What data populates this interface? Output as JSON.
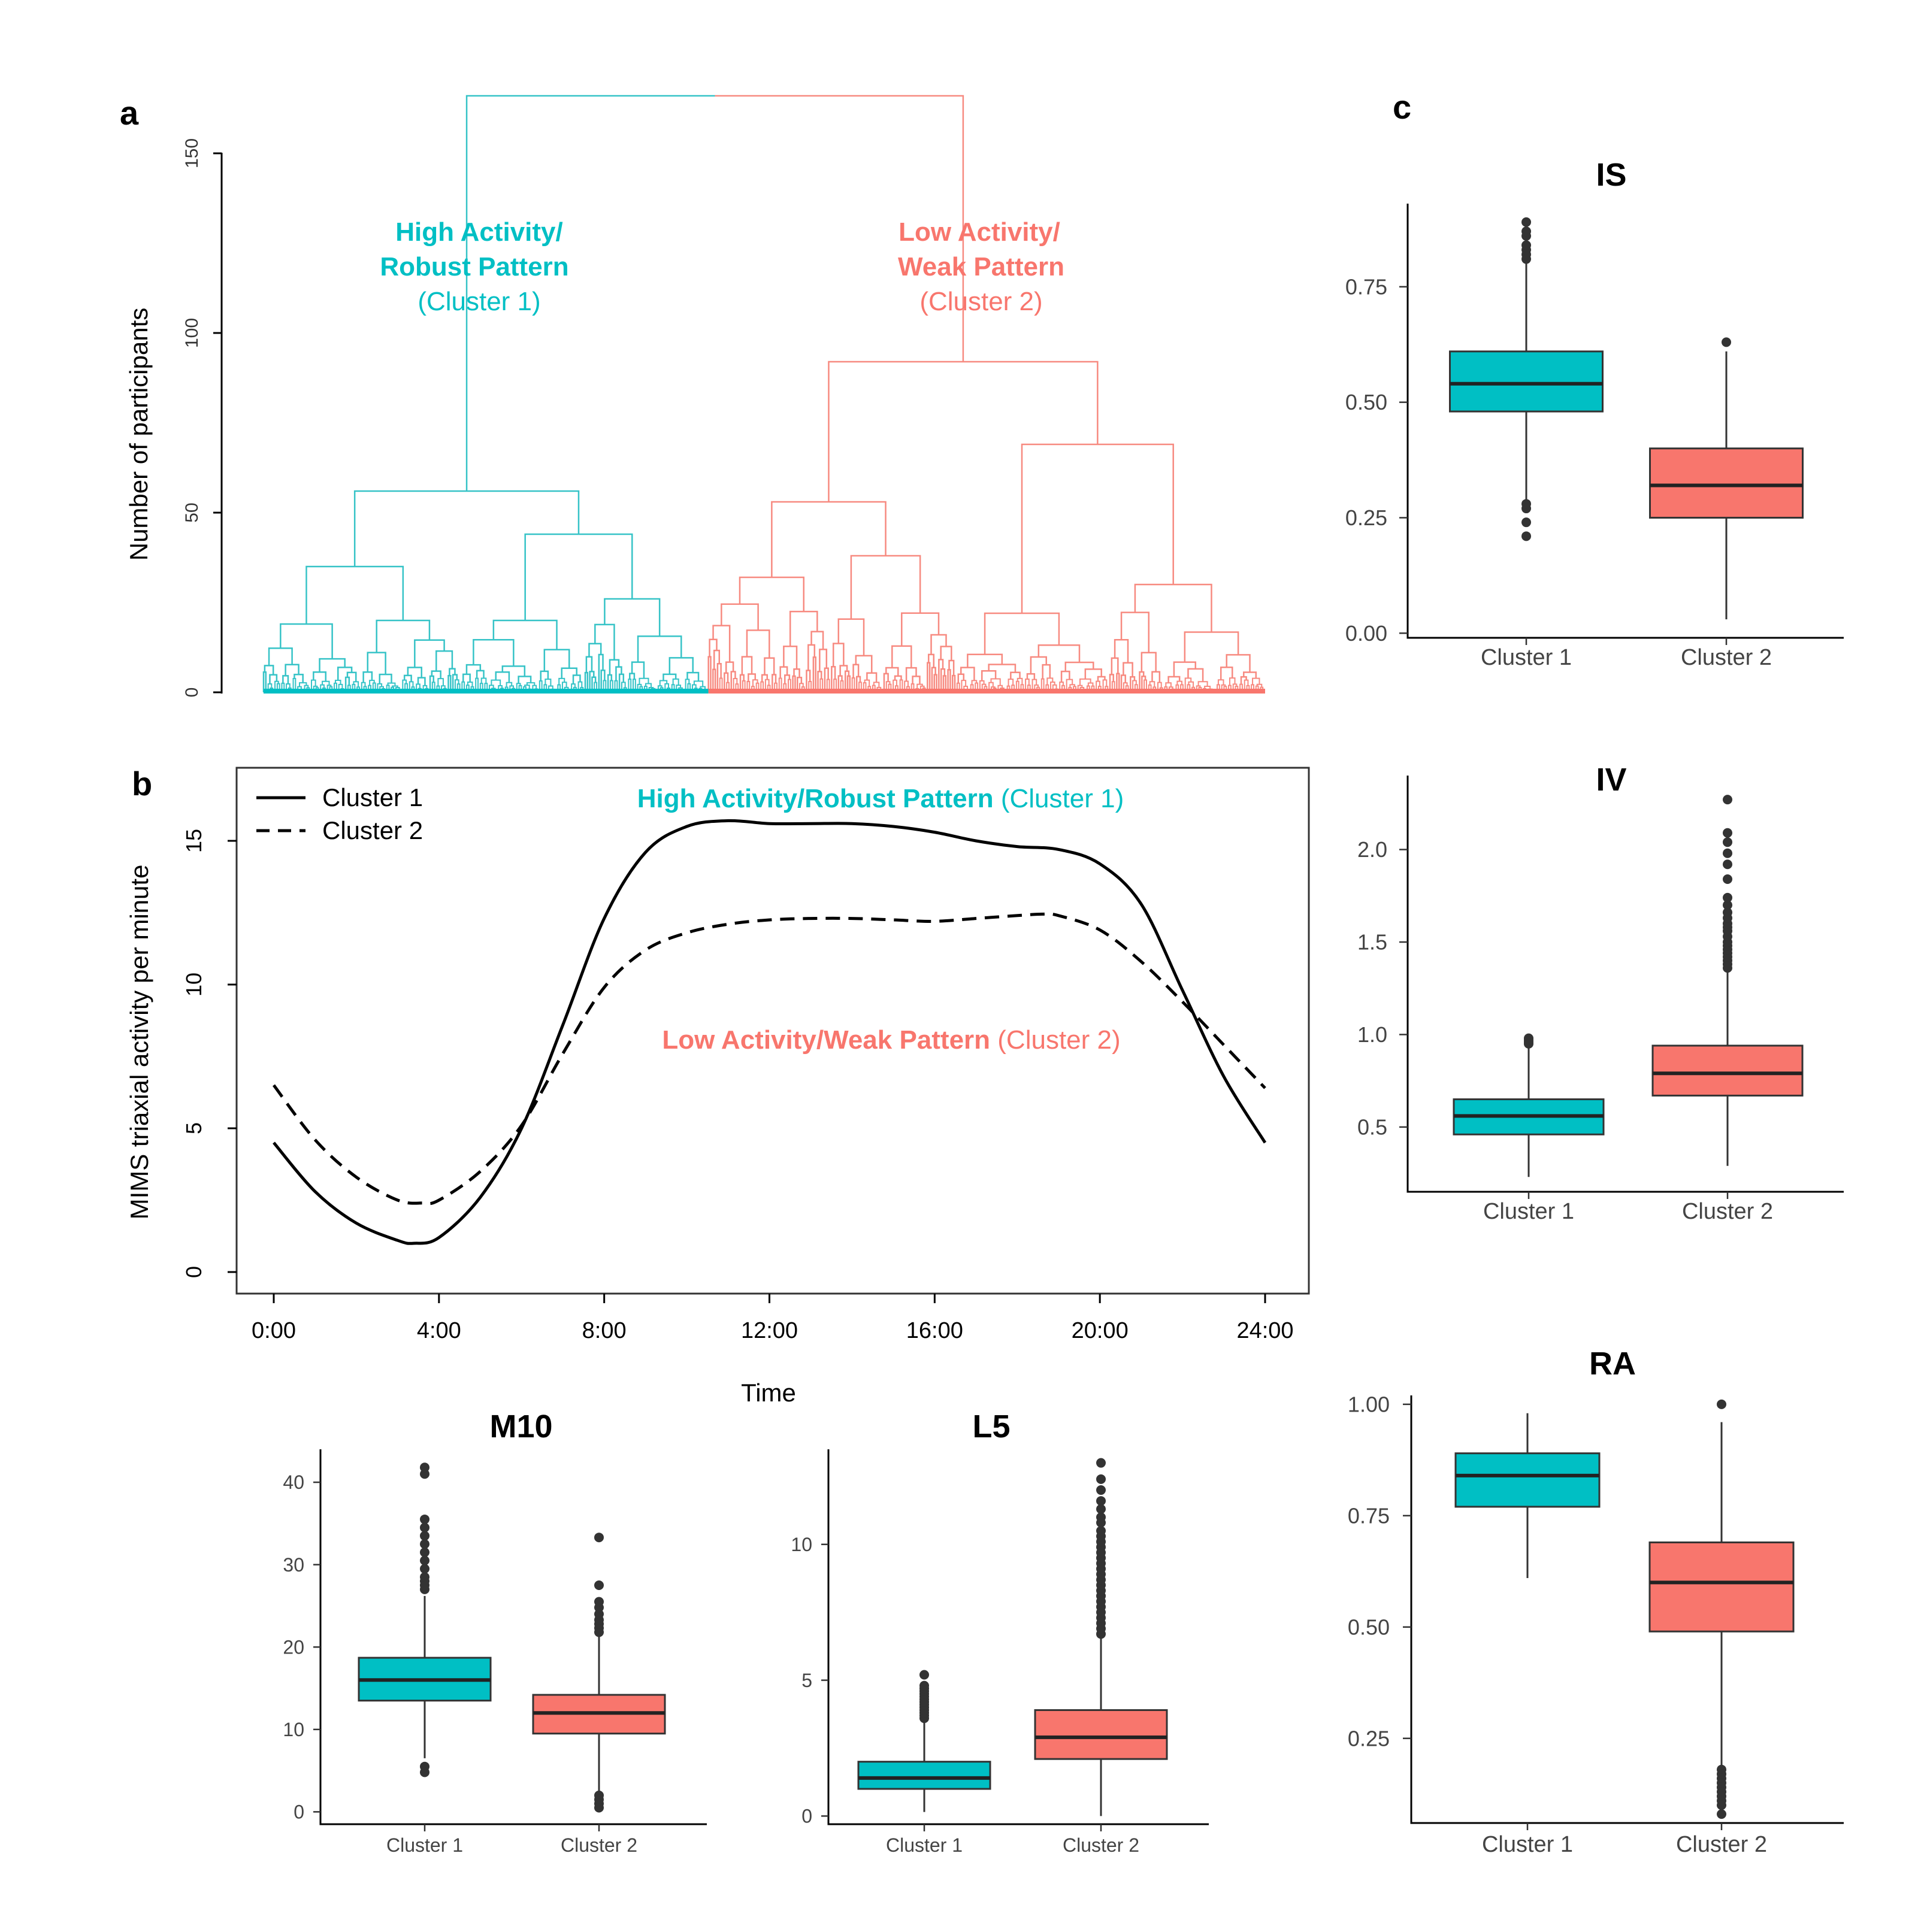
{
  "figure": {
    "panels": {
      "a": "a",
      "b": "b",
      "c": "c"
    }
  },
  "colors": {
    "cluster1": "#00BFC4",
    "cluster2": "#F8766D",
    "dendro1": "#36c3c7",
    "dendro2": "#f78a80",
    "outlier": "#333333"
  },
  "chart_data": [
    {
      "id": "dendrogram",
      "type": "dendrogram",
      "ylabel": "Number of participants",
      "yticks": [
        0,
        50,
        100,
        150
      ],
      "ylim": [
        0,
        150
      ],
      "root_height": 166,
      "clusters": [
        {
          "name_line1": "High Activity/",
          "name_line2": "Robust Pattern",
          "name_line3": "(Cluster 1)",
          "color_key": "cluster1",
          "merge_height": 56,
          "sub_merges": [
            35,
            44
          ],
          "lower_merges": [
            19,
            20,
            20,
            26,
            21
          ]
        },
        {
          "name_line1": "Low Activity/",
          "name_line2": "Weak Pattern",
          "name_line3": "(Cluster 2)",
          "color_key": "cluster2",
          "merge_height": 92,
          "sub_merges": [
            53,
            69
          ],
          "lower_merges": [
            32,
            38,
            22,
            30,
            25
          ]
        }
      ]
    },
    {
      "id": "activity-profile",
      "type": "line",
      "xlabel": "Time",
      "ylabel": "MIMS triaxial activity per minute",
      "xticks": [
        "0:00",
        "4:00",
        "8:00",
        "12:00",
        "16:00",
        "20:00",
        "24:00"
      ],
      "xlim_hours": [
        0,
        24
      ],
      "yticks": [
        0,
        5,
        10,
        15
      ],
      "ylim": [
        -0.6,
        17.5
      ],
      "legend": [
        "Cluster 1",
        "Cluster 2"
      ],
      "legend_position": "top-left",
      "annotations": [
        {
          "bold": "High Activity/Robust Pattern",
          "rest": " (Cluster 1)",
          "color_key": "cluster1"
        },
        {
          "bold": "Low Activity/Weak Pattern",
          "rest": " (Cluster 2)",
          "color_key": "cluster2"
        }
      ],
      "series": [
        {
          "name": "Cluster 1",
          "line_style": "solid",
          "x": [
            0,
            1,
            2,
            3,
            3.4,
            4,
            5,
            6,
            7,
            8,
            9,
            10,
            11,
            12,
            13,
            14,
            15,
            16,
            17,
            18,
            19,
            20,
            21,
            22,
            23,
            24
          ],
          "y": [
            4.5,
            2.8,
            1.7,
            1.1,
            1.0,
            1.2,
            2.6,
            5.0,
            8.6,
            12.3,
            14.6,
            15.5,
            15.7,
            15.6,
            15.6,
            15.6,
            15.5,
            15.3,
            15.0,
            14.8,
            14.7,
            14.2,
            12.8,
            9.8,
            6.8,
            4.5
          ]
        },
        {
          "name": "Cluster 2",
          "line_style": "dashed",
          "x": [
            0,
            1,
            2,
            3,
            3.6,
            4,
            5,
            6,
            7,
            8,
            9,
            10,
            11,
            12,
            13,
            14,
            15,
            16,
            17,
            18,
            18.6,
            19,
            20,
            21,
            22,
            23,
            24
          ],
          "y": [
            6.5,
            4.6,
            3.3,
            2.5,
            2.4,
            2.5,
            3.5,
            5.1,
            7.6,
            9.9,
            11.2,
            11.8,
            12.1,
            12.25,
            12.3,
            12.3,
            12.25,
            12.2,
            12.3,
            12.4,
            12.45,
            12.4,
            11.9,
            10.8,
            9.4,
            7.9,
            6.4
          ]
        }
      ]
    },
    {
      "id": "box-IS",
      "type": "box",
      "title": "IS",
      "categories": [
        "Cluster 1",
        "Cluster 2"
      ],
      "yticks": [
        0.0,
        0.25,
        0.5,
        0.75
      ],
      "ytick_labels": [
        "0.00",
        "0.25",
        "0.50",
        "0.75"
      ],
      "ylim": [
        -0.01,
        0.93
      ],
      "boxes": [
        {
          "category": "Cluster 1",
          "color_key": "cluster1",
          "whisker_low": 0.29,
          "q1": 0.48,
          "median": 0.54,
          "q3": 0.61,
          "whisker_high": 0.8,
          "outliers": [
            0.81,
            0.82,
            0.83,
            0.84,
            0.86,
            0.87,
            0.89,
            0.27,
            0.28,
            0.24,
            0.21
          ]
        },
        {
          "category": "Cluster 2",
          "color_key": "cluster2",
          "whisker_low": 0.03,
          "q1": 0.25,
          "median": 0.32,
          "q3": 0.4,
          "whisker_high": 0.61,
          "outliers": [
            0.63
          ]
        }
      ]
    },
    {
      "id": "box-IV",
      "type": "box",
      "title": "IV",
      "categories": [
        "Cluster 1",
        "Cluster 2"
      ],
      "yticks": [
        0.5,
        1.0,
        1.5,
        2.0
      ],
      "ytick_labels": [
        "0.5",
        "1.0",
        "1.5",
        "2.0"
      ],
      "ylim": [
        0.15,
        2.4
      ],
      "boxes": [
        {
          "category": "Cluster 1",
          "color_key": "cluster1",
          "whisker_low": 0.23,
          "q1": 0.46,
          "median": 0.56,
          "q3": 0.65,
          "whisker_high": 0.93,
          "outliers": [
            0.95,
            0.96,
            0.97,
            0.98
          ]
        },
        {
          "category": "Cluster 2",
          "color_key": "cluster2",
          "whisker_low": 0.29,
          "q1": 0.67,
          "median": 0.79,
          "q3": 0.94,
          "whisker_high": 1.35,
          "outliers": [
            1.36,
            1.38,
            1.4,
            1.42,
            1.44,
            1.46,
            1.48,
            1.5,
            1.53,
            1.56,
            1.58,
            1.6,
            1.63,
            1.66,
            1.7,
            1.74,
            1.84,
            1.92,
            1.98,
            2.04,
            2.09,
            2.27
          ]
        }
      ]
    },
    {
      "id": "box-RA",
      "type": "box",
      "title": "RA",
      "categories": [
        "Cluster 1",
        "Cluster 2"
      ],
      "yticks": [
        0.25,
        0.5,
        0.75,
        1.0
      ],
      "ytick_labels": [
        "0.25",
        "0.50",
        "0.75",
        "1.00"
      ],
      "ylim": [
        0.06,
        1.02
      ],
      "boxes": [
        {
          "category": "Cluster 1",
          "color_key": "cluster1",
          "whisker_low": 0.61,
          "q1": 0.77,
          "median": 0.84,
          "q3": 0.89,
          "whisker_high": 0.98,
          "outliers": []
        },
        {
          "category": "Cluster 2",
          "color_key": "cluster2",
          "whisker_low": 0.19,
          "q1": 0.49,
          "median": 0.6,
          "q3": 0.69,
          "whisker_high": 0.96,
          "outliers": [
            1.0,
            0.18,
            0.17,
            0.16,
            0.15,
            0.14,
            0.13,
            0.12,
            0.11,
            0.1,
            0.08
          ]
        }
      ]
    },
    {
      "id": "box-M10",
      "type": "box",
      "title": "M10",
      "categories": [
        "Cluster 1",
        "Cluster 2"
      ],
      "yticks": [
        0,
        10,
        20,
        30,
        40
      ],
      "ytick_labels": [
        "0",
        "10",
        "20",
        "30",
        "40"
      ],
      "ylim": [
        -1.5,
        44
      ],
      "boxes": [
        {
          "category": "Cluster 1",
          "color_key": "cluster1",
          "whisker_low": 6.5,
          "q1": 13.5,
          "median": 16.0,
          "q3": 18.7,
          "whisker_high": 26.2,
          "outliers": [
            27.0,
            27.5,
            28.0,
            28.5,
            29.5,
            30.5,
            31.5,
            32.5,
            33.5,
            34.5,
            35.5,
            41.0,
            41.8,
            5.5,
            4.8
          ]
        },
        {
          "category": "Cluster 2",
          "color_key": "cluster2",
          "whisker_low": 2.3,
          "q1": 9.5,
          "median": 12.0,
          "q3": 14.2,
          "whisker_high": 21.3,
          "outliers": [
            21.8,
            22.3,
            22.8,
            23.3,
            24.0,
            24.8,
            25.5,
            27.5,
            33.3,
            2.0,
            1.5,
            1.0,
            0.5
          ]
        }
      ]
    },
    {
      "id": "box-L5",
      "type": "box",
      "title": "L5",
      "categories": [
        "Cluster 1",
        "Cluster 2"
      ],
      "yticks": [
        0,
        5,
        10
      ],
      "ytick_labels": [
        "0",
        "5",
        "10"
      ],
      "ylim": [
        -0.3,
        13.5
      ],
      "boxes": [
        {
          "category": "Cluster 1",
          "color_key": "cluster1",
          "whisker_low": 0.15,
          "q1": 1.0,
          "median": 1.4,
          "q3": 2.0,
          "whisker_high": 3.5,
          "outliers": [
            3.6,
            3.7,
            3.8,
            3.9,
            4.0,
            4.1,
            4.2,
            4.3,
            4.4,
            4.5,
            4.6,
            4.7,
            4.8,
            5.2
          ]
        },
        {
          "category": "Cluster 2",
          "color_key": "cluster2",
          "whisker_low": 0.0,
          "q1": 2.1,
          "median": 2.9,
          "q3": 3.9,
          "whisker_high": 6.6,
          "outliers": [
            6.7,
            6.9,
            7.1,
            7.3,
            7.5,
            7.7,
            7.9,
            8.1,
            8.3,
            8.5,
            8.7,
            8.9,
            9.1,
            9.3,
            9.5,
            9.7,
            9.9,
            10.1,
            10.3,
            10.5,
            10.8,
            11.0,
            11.3,
            11.6,
            12.0,
            12.4,
            13.0
          ]
        }
      ]
    }
  ]
}
